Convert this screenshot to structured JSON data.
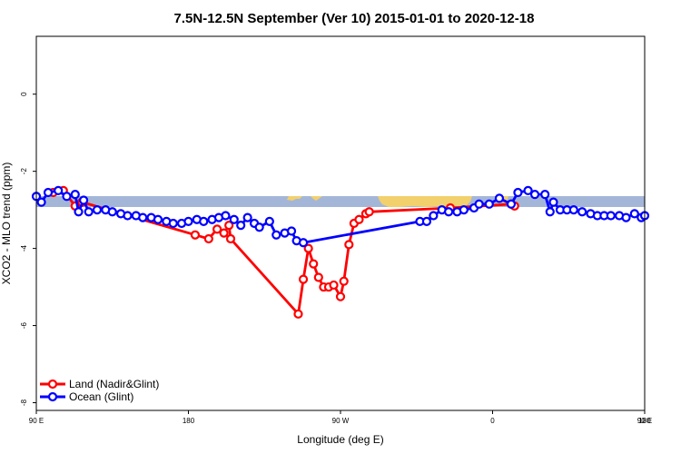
{
  "chart_data": {
    "type": "line",
    "title": "7.5N-12.5N September (Ver 10)   2015-01-01 to 2020-12-18",
    "xlabel": "Longitude (deg E)",
    "ylabel": "XCO2 - MLO trend (ppm)",
    "xlim": [
      -180,
      180
    ],
    "ylim": [
      -8.2,
      1.5
    ],
    "xticks": [
      -180,
      -90,
      0,
      90,
      180
    ],
    "xtick_labels": [
      "90 E",
      "180",
      "90 W",
      "0",
      "90 E",
      "180"
    ],
    "xtick_positions": [
      -180,
      -90,
      0,
      90,
      180,
      180
    ],
    "yticks": [
      -8,
      -6,
      -4,
      -2,
      0
    ],
    "ytick_labels": [
      "-8",
      "-6",
      "-4",
      "-2",
      "0"
    ],
    "colors": {
      "land": "#ff0000",
      "ocean": "#0000ff",
      "band": "#a4b6d8",
      "landmass": "#f2d06c"
    },
    "legend": {
      "placement": "bottom-left",
      "entries": [
        "Land (Nadir&Glint)",
        "Ocean (Glint)"
      ]
    },
    "series": [
      {
        "name": "Land (Nadir&Glint)",
        "x": [
          -170,
          -164,
          -157,
          -153,
          -86,
          -78,
          -73,
          -69,
          -66,
          -65,
          -25,
          -22,
          -19,
          -16,
          -13,
          -10,
          -7,
          -4,
          0,
          2,
          5,
          8,
          11,
          15,
          17,
          65,
          101,
          103
        ],
        "y": [
          -2.55,
          -2.5,
          -2.9,
          -2.8,
          -3.65,
          -3.75,
          -3.5,
          -3.6,
          -3.4,
          -3.75,
          -5.7,
          -4.8,
          -4.0,
          -4.4,
          -4.75,
          -5.0,
          -5.0,
          -4.95,
          -5.25,
          -4.85,
          -3.9,
          -3.35,
          -3.25,
          -3.1,
          -3.05,
          -2.95,
          -2.85,
          -2.9
        ]
      },
      {
        "name": "Ocean (Glint)",
        "x": [
          -180,
          -177,
          -173,
          -167,
          -162,
          -157,
          -155,
          -152,
          -149,
          -144,
          -139,
          -135,
          -130,
          -126,
          -121,
          -117,
          -112,
          -108,
          -103,
          -99,
          -94,
          -90,
          -85,
          -81,
          -76,
          -72,
          -68,
          -63,
          -59,
          -55,
          -51,
          -48,
          -42,
          -38,
          -33,
          -29,
          -26,
          -22,
          47,
          51,
          55,
          60,
          64,
          69,
          73,
          79,
          82,
          88,
          94,
          101,
          105,
          111,
          115,
          121,
          124,
          126,
          130,
          134,
          138,
          143,
          148,
          152,
          156,
          160,
          165,
          169,
          174,
          178,
          180
        ],
        "y": [
          -2.65,
          -2.8,
          -2.55,
          -2.5,
          -2.65,
          -2.6,
          -3.05,
          -2.75,
          -3.05,
          -3.0,
          -3.0,
          -3.05,
          -3.1,
          -3.15,
          -3.15,
          -3.2,
          -3.2,
          -3.25,
          -3.3,
          -3.35,
          -3.35,
          -3.3,
          -3.25,
          -3.3,
          -3.25,
          -3.2,
          -3.15,
          -3.25,
          -3.4,
          -3.2,
          -3.35,
          -3.45,
          -3.3,
          -3.65,
          -3.6,
          -3.55,
          -3.8,
          -3.85,
          -3.3,
          -3.3,
          -3.15,
          -3.0,
          -3.05,
          -3.05,
          -3.0,
          -2.95,
          -2.85,
          -2.85,
          -2.7,
          -2.85,
          -2.55,
          -2.5,
          -2.6,
          -2.6,
          -3.05,
          -2.8,
          -3.0,
          -3.0,
          -3.0,
          -3.05,
          -3.1,
          -3.15,
          -3.15,
          -3.15,
          -3.15,
          -3.2,
          -3.1,
          -3.2,
          -3.15
        ]
      }
    ]
  }
}
